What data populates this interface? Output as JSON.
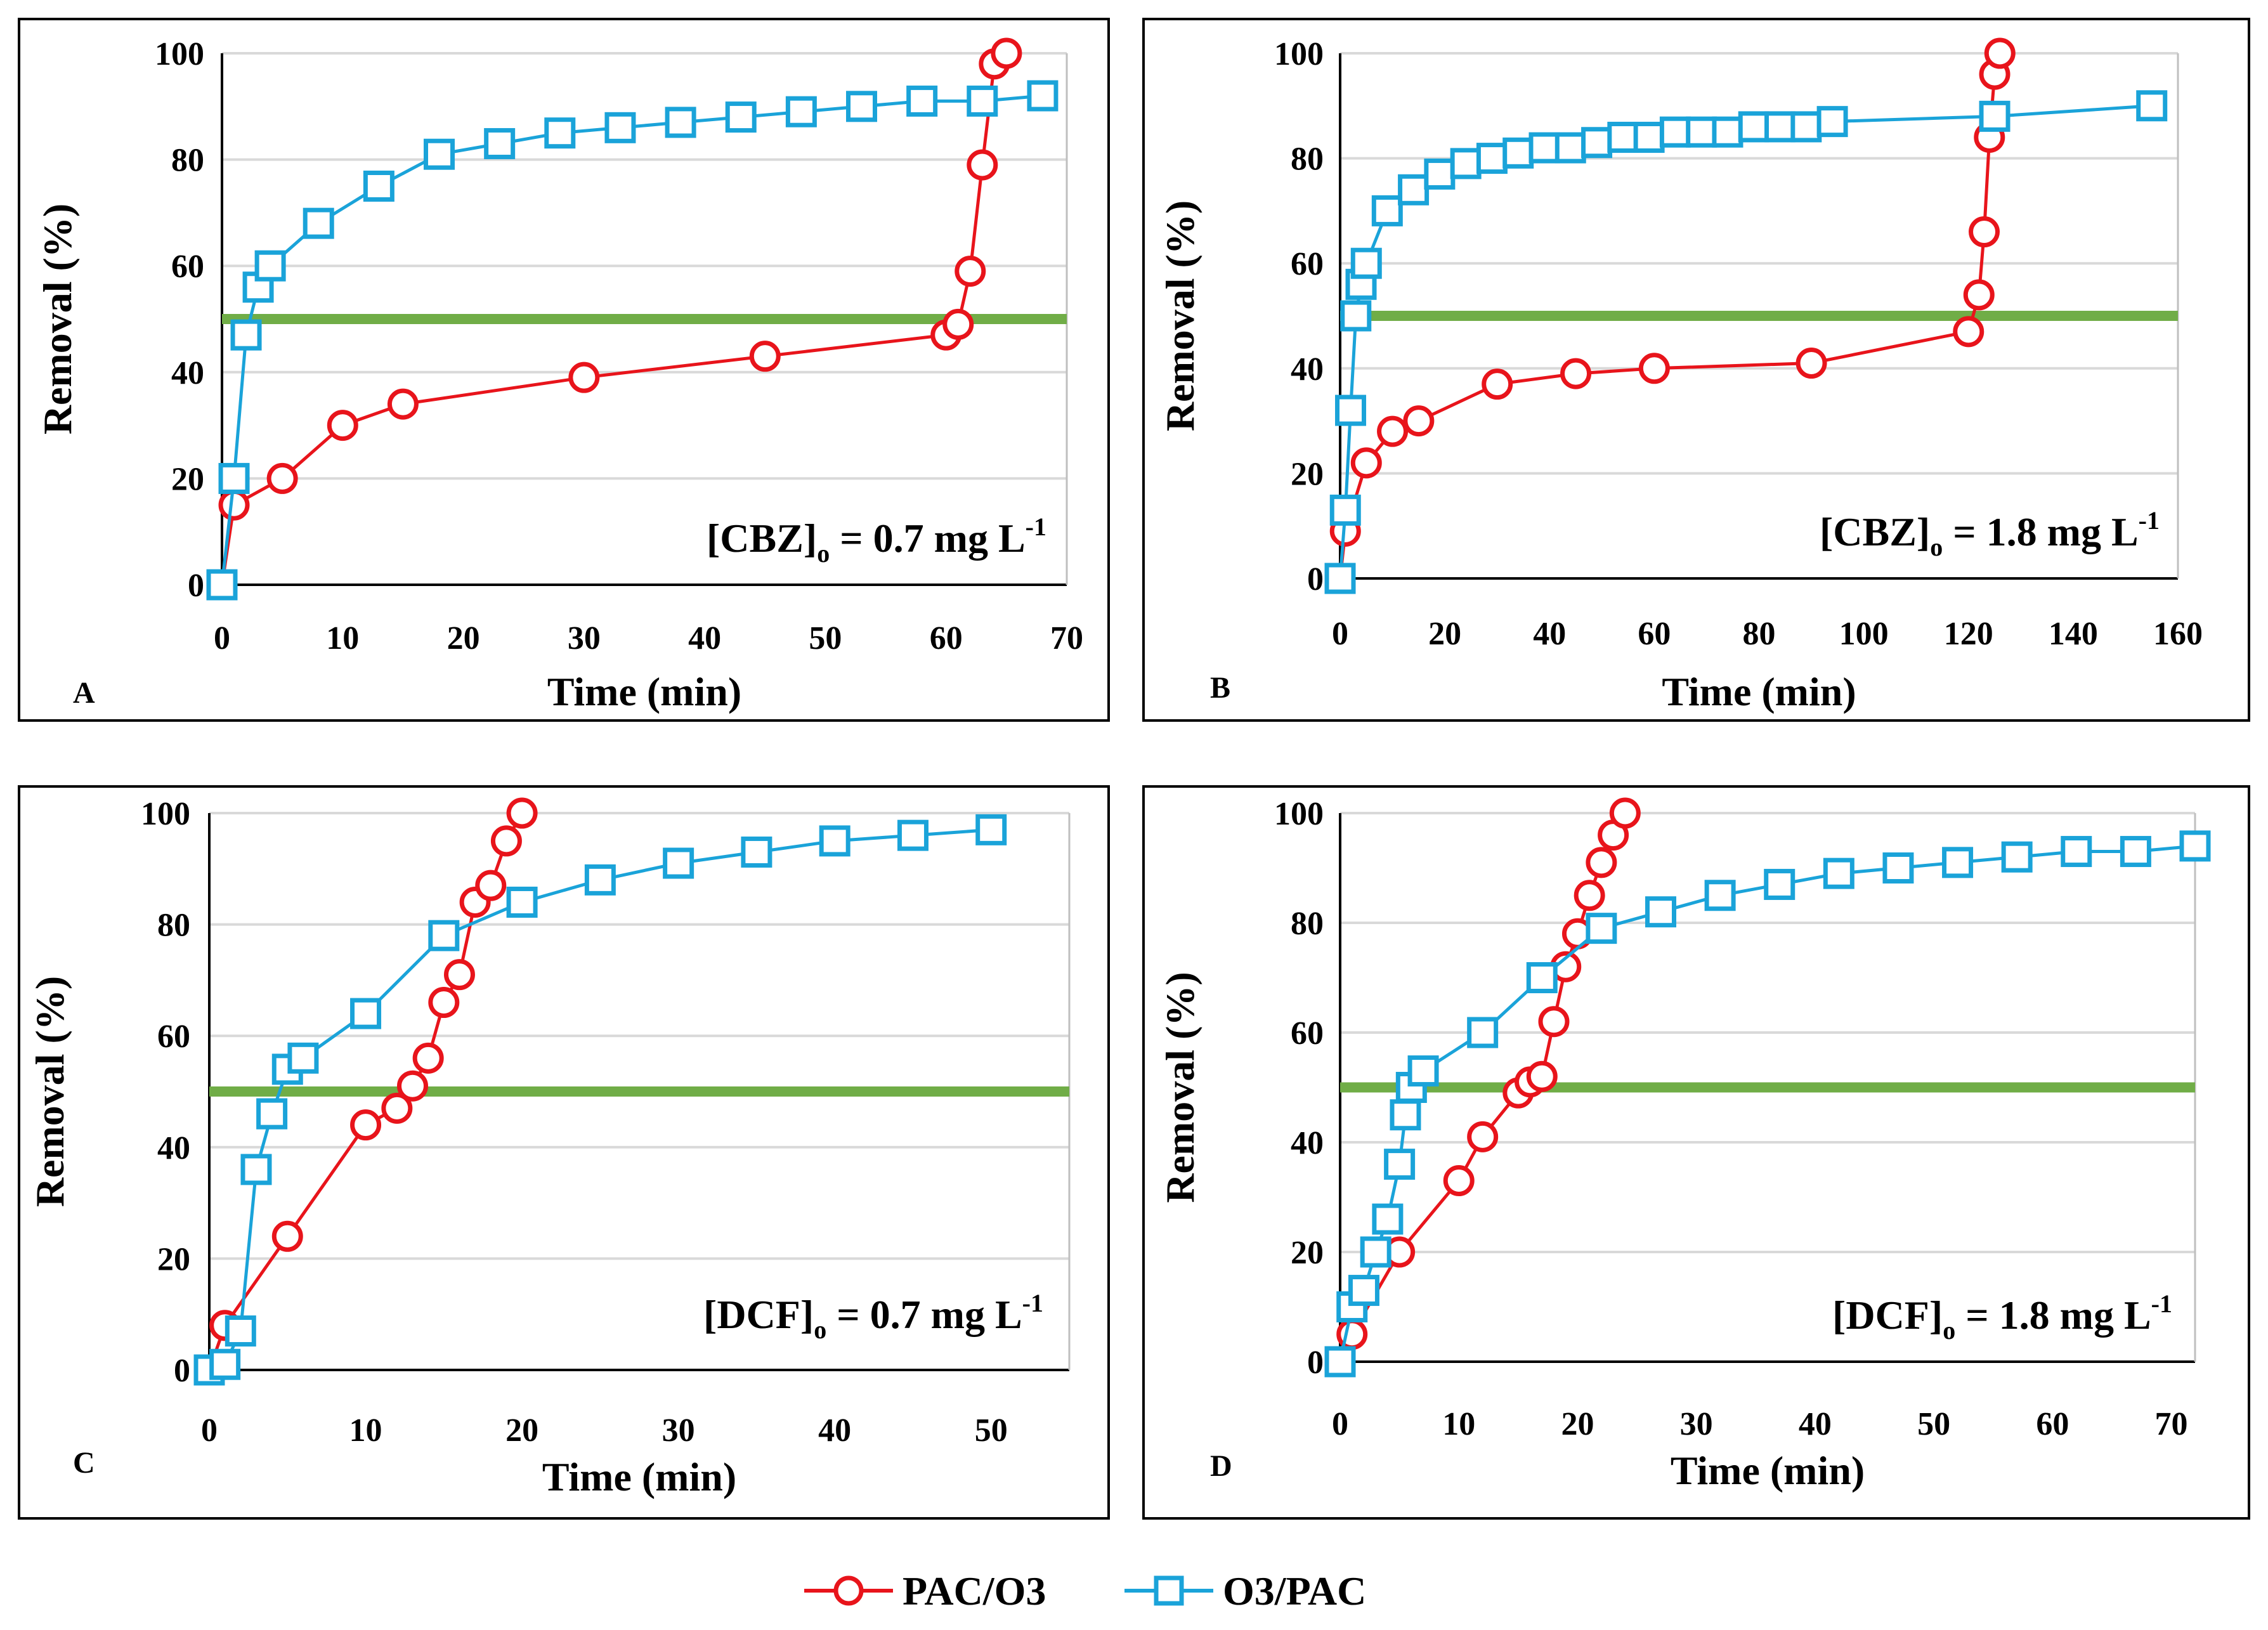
{
  "legend": [
    {
      "label": "PAC/O3",
      "color": "#e8141b",
      "marker": "circle"
    },
    {
      "label": "O3/PAC",
      "color": "#1aa3d9",
      "marker": "square"
    }
  ],
  "colors": {
    "threshold": "#70ad47",
    "grid": "#d9d9d9",
    "frame": "#000000"
  },
  "chart_data": [
    {
      "type": "line",
      "panel": "A",
      "annotation": {
        "prefix": "[CBZ]",
        "sub": "o",
        "middle": " = 0.7 mg L",
        "sup": "-1"
      },
      "xlabel": "Time (min)",
      "ylabel": "Removal (%)",
      "xlim": [
        0,
        70
      ],
      "ylim": [
        0,
        100
      ],
      "xticks": [
        0,
        10,
        20,
        30,
        40,
        50,
        60,
        70
      ],
      "yticks": [
        0,
        20,
        40,
        60,
        80,
        100
      ],
      "grid": true,
      "threshold": 50,
      "series": [
        {
          "name": "PAC/O3",
          "x": [
            0,
            1,
            5,
            10,
            15,
            30,
            45,
            60,
            61,
            62,
            63,
            64,
            65
          ],
          "y": [
            0,
            15,
            20,
            30,
            34,
            39,
            43,
            47,
            49,
            59,
            79,
            98,
            100
          ]
        },
        {
          "name": "O3/PAC",
          "x": [
            0,
            1,
            2,
            3,
            4,
            8,
            13,
            18,
            23,
            28,
            33,
            38,
            43,
            48,
            53,
            58,
            63,
            68
          ],
          "y": [
            0,
            20,
            47,
            56,
            60,
            68,
            75,
            81,
            83,
            85,
            86,
            87,
            88,
            89,
            90,
            91,
            91,
            92
          ]
        }
      ]
    },
    {
      "type": "line",
      "panel": "B",
      "annotation": {
        "prefix": "[CBZ]",
        "sub": "o",
        "middle": " = 1.8 mg L",
        "sup": "-1"
      },
      "xlabel": "Time (min)",
      "ylabel": "Removal (%)",
      "xlim": [
        0,
        160
      ],
      "ylim": [
        0,
        100
      ],
      "xticks": [
        0,
        20,
        40,
        60,
        80,
        100,
        120,
        140,
        160
      ],
      "yticks": [
        0,
        20,
        40,
        60,
        80,
        100
      ],
      "grid": true,
      "threshold": 50,
      "series": [
        {
          "name": "PAC/O3",
          "x": [
            0,
            1,
            5,
            10,
            15,
            30,
            45,
            60,
            90,
            120,
            122,
            123,
            124,
            125,
            126
          ],
          "y": [
            0,
            9,
            22,
            28,
            30,
            37,
            39,
            40,
            41,
            47,
            54,
            66,
            84,
            96,
            100
          ]
        },
        {
          "name": "O3/PAC",
          "x": [
            0,
            1,
            2,
            3,
            4,
            5,
            9,
            14,
            19,
            24,
            29,
            34,
            39,
            44,
            49,
            54,
            59,
            64,
            69,
            74,
            79,
            84,
            89,
            94,
            125,
            155
          ],
          "y": [
            0,
            13,
            32,
            50,
            56,
            60,
            70,
            74,
            77,
            79,
            80,
            81,
            82,
            82,
            83,
            84,
            84,
            85,
            85,
            85,
            86,
            86,
            86,
            87,
            88,
            90
          ]
        }
      ]
    },
    {
      "type": "line",
      "panel": "C",
      "annotation": {
        "prefix": "[DCF]",
        "sub": "o",
        "middle": " = 0.7 mg L",
        "sup": "-1"
      },
      "xlabel": "Time (min)",
      "ylabel": "Removal (%)",
      "xlim": [
        0,
        55
      ],
      "ylim": [
        0,
        100
      ],
      "xticks": [
        0,
        10,
        20,
        30,
        40,
        50
      ],
      "yticks": [
        0,
        20,
        40,
        60,
        80,
        100
      ],
      "grid": true,
      "threshold": 50,
      "series": [
        {
          "name": "PAC/O3",
          "x": [
            0,
            1,
            5,
            10,
            12,
            13,
            14,
            15,
            16,
            17,
            18,
            19,
            20
          ],
          "y": [
            0,
            8,
            24,
            44,
            47,
            51,
            56,
            66,
            71,
            84,
            87,
            95,
            100
          ]
        },
        {
          "name": "O3/PAC",
          "x": [
            0,
            1,
            2,
            3,
            4,
            5,
            6,
            10,
            15,
            20,
            25,
            30,
            35,
            40,
            45,
            50
          ],
          "y": [
            0,
            1,
            7,
            36,
            46,
            54,
            56,
            64,
            78,
            84,
            88,
            91,
            93,
            95,
            96,
            97
          ]
        }
      ]
    },
    {
      "type": "line",
      "panel": "D",
      "annotation": {
        "prefix": "[DCF]",
        "sub": "o",
        "middle": " = 1.8 mg L",
        "sup": "-1"
      },
      "xlabel": "Time (min)",
      "ylabel": "Removal (%)",
      "xlim": [
        0,
        72
      ],
      "ylim": [
        0,
        100
      ],
      "xticks": [
        0,
        10,
        20,
        30,
        40,
        50,
        60,
        70
      ],
      "yticks": [
        0,
        20,
        40,
        60,
        80,
        100
      ],
      "grid": true,
      "threshold": 50,
      "series": [
        {
          "name": "PAC/O3",
          "x": [
            0,
            1,
            5,
            10,
            12,
            15,
            16,
            17,
            18,
            19,
            20,
            21,
            22,
            23,
            24
          ],
          "y": [
            0,
            5,
            20,
            33,
            41,
            49,
            51,
            52,
            62,
            72,
            78,
            85,
            91,
            96,
            100
          ]
        },
        {
          "name": "O3/PAC",
          "x": [
            0,
            1,
            2,
            3,
            4,
            5,
            5.5,
            6,
            7,
            12,
            17,
            22,
            27,
            32,
            37,
            42,
            47,
            52,
            57,
            62,
            67,
            72
          ],
          "y": [
            0,
            10,
            13,
            20,
            26,
            36,
            45,
            50,
            53,
            60,
            70,
            79,
            82,
            85,
            87,
            89,
            90,
            91,
            92,
            93,
            93,
            94
          ]
        }
      ]
    }
  ]
}
